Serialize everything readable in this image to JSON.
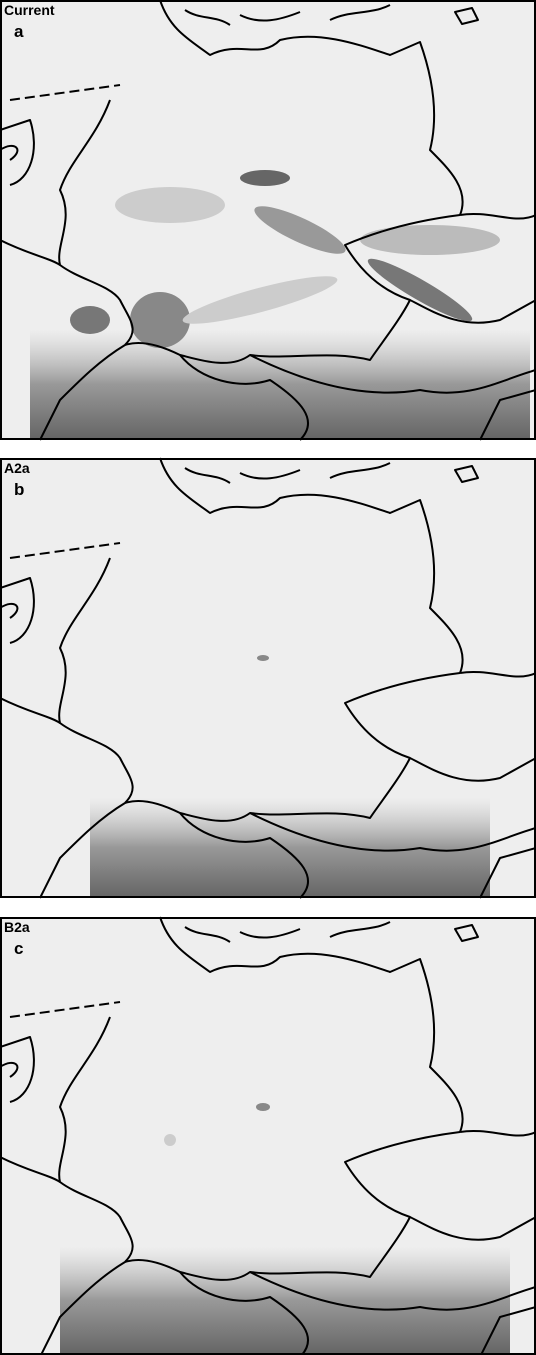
{
  "panels": [
    {
      "scenario": "Current",
      "letter": "a"
    },
    {
      "scenario": "A2a",
      "letter": "b"
    },
    {
      "scenario": "B2a",
      "letter": "c"
    }
  ]
}
